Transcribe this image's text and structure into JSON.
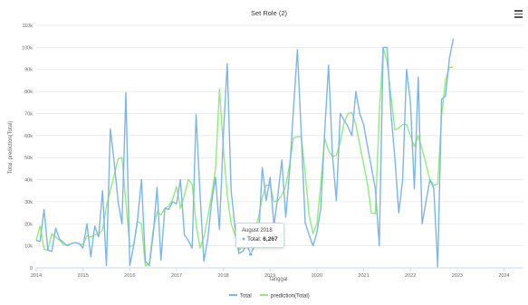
{
  "menu_icon": "hamburger-menu-icon",
  "tooltip": {
    "date": "August 2018",
    "series": "Total",
    "value": "6,267"
  },
  "chart_data": {
    "type": "line",
    "title": "Set Role (2)",
    "xlabel": "Tanggal",
    "ylabel": "Total, prediction(Total)",
    "ylim": [
      0,
      110000
    ],
    "y_ticks": [
      0,
      10000,
      20000,
      30000,
      40000,
      50000,
      60000,
      70000,
      80000,
      90000,
      100000,
      110000
    ],
    "y_tick_labels": [
      "0",
      "10k",
      "20k",
      "30k",
      "40k",
      "50k",
      "60k",
      "70k",
      "80k",
      "90k",
      "100k",
      "110k"
    ],
    "x_ticks": [
      "2014",
      "2015",
      "2016",
      "2017",
      "2018",
      "2019",
      "2020",
      "2021",
      "2022",
      "2023",
      "2024"
    ],
    "xlim": [
      "2014-01",
      "2024-06"
    ],
    "grid": true,
    "legend_position": "bottom",
    "series": [
      {
        "name": "Total",
        "color": "#7cb5ec",
        "points": [
          [
            "2014-01",
            12500
          ],
          [
            "2014-02",
            12000
          ],
          [
            "2014-03",
            26500
          ],
          [
            "2014-04",
            8000
          ],
          [
            "2014-05",
            7500
          ],
          [
            "2014-06",
            18000
          ],
          [
            "2014-07",
            13000
          ],
          [
            "2014-08",
            11500
          ],
          [
            "2014-09",
            10000
          ],
          [
            "2014-10",
            11000
          ],
          [
            "2014-11",
            11500
          ],
          [
            "2014-12",
            11000
          ],
          [
            "2015-01",
            9000
          ],
          [
            "2015-02",
            20000
          ],
          [
            "2015-03",
            5000
          ],
          [
            "2015-04",
            19000
          ],
          [
            "2015-05",
            14000
          ],
          [
            "2015-06",
            35000
          ],
          [
            "2015-07",
            1000
          ],
          [
            "2015-08",
            63000
          ],
          [
            "2015-09",
            48000
          ],
          [
            "2015-10",
            30000
          ],
          [
            "2015-11",
            20000
          ],
          [
            "2015-12",
            79500
          ],
          [
            "2016-01",
            1000
          ],
          [
            "2016-02",
            10000
          ],
          [
            "2016-03",
            22000
          ],
          [
            "2016-04",
            40000
          ],
          [
            "2016-05",
            3000
          ],
          [
            "2016-06",
            1000
          ],
          [
            "2016-07",
            15000
          ],
          [
            "2016-08",
            36500
          ],
          [
            "2016-09",
            3500
          ],
          [
            "2016-10",
            27000
          ],
          [
            "2016-11",
            26500
          ],
          [
            "2016-12",
            30000
          ],
          [
            "2017-01",
            29000
          ],
          [
            "2017-02",
            40000
          ],
          [
            "2017-03",
            15000
          ],
          [
            "2017-04",
            12500
          ],
          [
            "2017-05",
            9000
          ],
          [
            "2017-06",
            69500
          ],
          [
            "2017-07",
            34000
          ],
          [
            "2017-08",
            3000
          ],
          [
            "2017-09",
            13000
          ],
          [
            "2017-10",
            30000
          ],
          [
            "2017-11",
            41000
          ],
          [
            "2017-12",
            17500
          ],
          [
            "2018-01",
            60000
          ],
          [
            "2018-02",
            92500
          ],
          [
            "2018-03",
            35000
          ],
          [
            "2018-04",
            18500
          ],
          [
            "2018-05",
            6500
          ],
          [
            "2018-06",
            7500
          ],
          [
            "2018-07",
            10500
          ],
          [
            "2018-08",
            6267
          ],
          [
            "2018-09",
            10000
          ],
          [
            "2018-10",
            12500
          ],
          [
            "2018-11",
            45500
          ],
          [
            "2018-12",
            30500
          ],
          [
            "2019-01",
            41000
          ],
          [
            "2019-02",
            19000
          ],
          [
            "2019-03",
            33000
          ],
          [
            "2019-04",
            49000
          ],
          [
            "2019-05",
            23000
          ],
          [
            "2019-06",
            44000
          ],
          [
            "2019-07",
            72500
          ],
          [
            "2019-08",
            99000
          ],
          [
            "2019-09",
            60000
          ],
          [
            "2019-10",
            20500
          ],
          [
            "2019-11",
            15000
          ],
          [
            "2019-12",
            10000
          ],
          [
            "2020-01",
            16000
          ],
          [
            "2020-02",
            27000
          ],
          [
            "2020-03",
            61500
          ],
          [
            "2020-04",
            92000
          ],
          [
            "2020-05",
            51000
          ],
          [
            "2020-06",
            30500
          ],
          [
            "2020-07",
            70000
          ],
          [
            "2020-08",
            67000
          ],
          [
            "2020-09",
            64000
          ],
          [
            "2020-10",
            60000
          ],
          [
            "2020-11",
            80000
          ],
          [
            "2020-12",
            70000
          ],
          [
            "2021-01",
            65000
          ],
          [
            "2021-02",
            55000
          ],
          [
            "2021-03",
            45500
          ],
          [
            "2021-04",
            36000
          ],
          [
            "2021-05",
            10000
          ],
          [
            "2021-06",
            100000
          ],
          [
            "2021-07",
            100000
          ],
          [
            "2021-08",
            70000
          ],
          [
            "2021-09",
            50000
          ],
          [
            "2021-10",
            25000
          ],
          [
            "2021-11",
            40000
          ],
          [
            "2021-12",
            90000
          ],
          [
            "2022-01",
            75000
          ],
          [
            "2022-02",
            36000
          ],
          [
            "2022-03",
            86500
          ],
          [
            "2022-04",
            20000
          ],
          [
            "2022-05",
            30000
          ],
          [
            "2022-06",
            40000
          ],
          [
            "2022-07",
            36000
          ],
          [
            "2022-08",
            500
          ],
          [
            "2022-09",
            76500
          ],
          [
            "2022-10",
            78000
          ],
          [
            "2022-11",
            95000
          ],
          [
            "2022-12",
            104000
          ]
        ]
      },
      {
        "name": "prediction(Total)",
        "color": "#90ed7d",
        "points": [
          [
            "2014-01",
            12500
          ],
          [
            "2014-02",
            19000
          ],
          [
            "2014-03",
            8500
          ],
          [
            "2014-04",
            8000
          ],
          [
            "2014-05",
            15500
          ],
          [
            "2014-06",
            14000
          ],
          [
            "2014-07",
            12500
          ],
          [
            "2014-08",
            10500
          ],
          [
            "2014-09",
            10500
          ],
          [
            "2014-10",
            11000
          ],
          [
            "2014-11",
            11500
          ],
          [
            "2014-12",
            11000
          ],
          [
            "2015-01",
            10500
          ],
          [
            "2015-02",
            14500
          ],
          [
            "2015-03",
            14000
          ],
          [
            "2015-04",
            15000
          ],
          [
            "2015-05",
            15500
          ],
          [
            "2015-06",
            17000
          ],
          [
            "2015-07",
            28000
          ],
          [
            "2015-08",
            35000
          ],
          [
            "2015-09",
            42000
          ],
          [
            "2015-10",
            49500
          ],
          [
            "2015-11",
            50000
          ],
          [
            "2015-12",
            30000
          ],
          [
            "2016-01",
            9500
          ],
          [
            "2016-02",
            10500
          ],
          [
            "2016-03",
            21000
          ],
          [
            "2016-04",
            20000
          ],
          [
            "2016-05",
            1000
          ],
          [
            "2016-06",
            2000
          ],
          [
            "2016-07",
            17000
          ],
          [
            "2016-08",
            25500
          ],
          [
            "2016-09",
            24000
          ],
          [
            "2016-10",
            27000
          ],
          [
            "2016-11",
            28000
          ],
          [
            "2016-12",
            31000
          ],
          [
            "2017-01",
            37000
          ],
          [
            "2017-02",
            27000
          ],
          [
            "2017-03",
            33000
          ],
          [
            "2017-04",
            40000
          ],
          [
            "2017-05",
            38000
          ],
          [
            "2017-06",
            20000
          ],
          [
            "2017-07",
            9000
          ],
          [
            "2017-08",
            14000
          ],
          [
            "2017-09",
            23000
          ],
          [
            "2017-10",
            33000
          ],
          [
            "2017-11",
            45000
          ],
          [
            "2017-12",
            81000
          ],
          [
            "2018-01",
            54500
          ],
          [
            "2018-02",
            33000
          ],
          [
            "2018-03",
            20000
          ],
          [
            "2018-04",
            15000
          ],
          [
            "2018-05",
            8000
          ],
          [
            "2018-06",
            10000
          ],
          [
            "2018-07",
            10500
          ],
          [
            "2018-08",
            11000
          ],
          [
            "2018-09",
            17000
          ],
          [
            "2018-10",
            22500
          ],
          [
            "2018-11",
            32000
          ],
          [
            "2018-12",
            37500
          ],
          [
            "2019-01",
            37500
          ],
          [
            "2019-02",
            30000
          ],
          [
            "2019-03",
            30500
          ],
          [
            "2019-04",
            33000
          ],
          [
            "2019-05",
            37000
          ],
          [
            "2019-06",
            47000
          ],
          [
            "2019-07",
            59000
          ],
          [
            "2019-08",
            59500
          ],
          [
            "2019-09",
            59500
          ],
          [
            "2019-10",
            43000
          ],
          [
            "2019-11",
            24000
          ],
          [
            "2019-12",
            15500
          ],
          [
            "2020-01",
            20000
          ],
          [
            "2020-02",
            38000
          ],
          [
            "2020-03",
            59000
          ],
          [
            "2020-04",
            53000
          ],
          [
            "2020-05",
            50500
          ],
          [
            "2020-06",
            51000
          ],
          [
            "2020-07",
            57000
          ],
          [
            "2020-08",
            66000
          ],
          [
            "2020-09",
            70000
          ],
          [
            "2020-10",
            70500
          ],
          [
            "2020-11",
            65000
          ],
          [
            "2020-12",
            56000
          ],
          [
            "2021-01",
            47000
          ],
          [
            "2021-02",
            38000
          ],
          [
            "2021-03",
            25000
          ],
          [
            "2021-04",
            24500
          ],
          [
            "2021-05",
            70000
          ],
          [
            "2021-06",
            100000
          ],
          [
            "2021-07",
            93500
          ],
          [
            "2021-08",
            78000
          ],
          [
            "2021-09",
            62500
          ],
          [
            "2021-10",
            63500
          ],
          [
            "2021-11",
            65000
          ],
          [
            "2021-12",
            65000
          ],
          [
            "2022-01",
            60000
          ],
          [
            "2022-02",
            55000
          ],
          [
            "2022-03",
            60000
          ],
          [
            "2022-04",
            54000
          ],
          [
            "2022-05",
            47000
          ],
          [
            "2022-06",
            40000
          ],
          [
            "2022-07",
            37500
          ],
          [
            "2022-08",
            38000
          ],
          [
            "2022-09",
            69000
          ],
          [
            "2022-10",
            85000
          ],
          [
            "2022-11",
            91000
          ],
          [
            "2022-12",
            91000
          ]
        ]
      }
    ]
  }
}
